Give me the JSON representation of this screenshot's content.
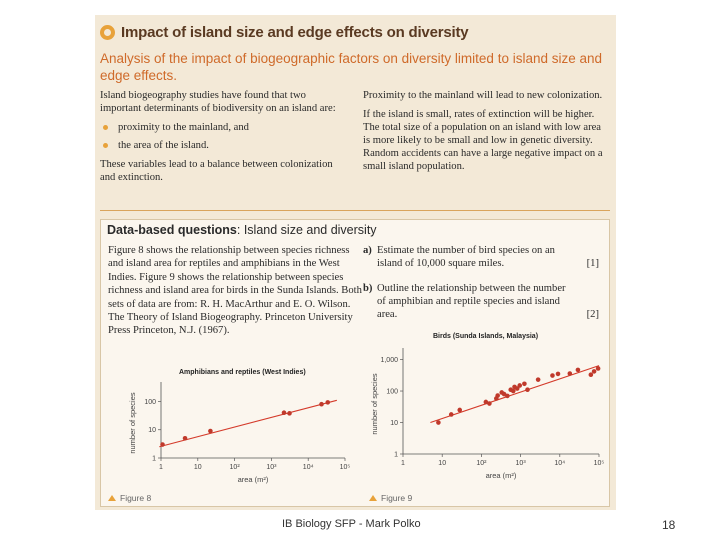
{
  "header": {
    "title": "Impact of island size and edge effects on diversity",
    "subtitle": "Analysis of the impact of biogeographic factors on diversity limited to island size and edge effects."
  },
  "intro": {
    "left_para": "Island biogeography studies have found that two important determinants of biodiversity on an island are:",
    "bullets": [
      "proximity to the mainland, and",
      "the area of the island."
    ],
    "left_after": "These variables lead to a balance between colonization and extinction.",
    "right_para1": "Proximity to the mainland will lead to new colonization.",
    "right_para2": "If the island is small, rates of extinction will be higher. The total size of a population on an island with low area is more likely to be small and low in genetic diversity. Random accidents can have a large negative impact on a small island population."
  },
  "dbq": {
    "title_bold": "Data-based questions",
    "title_rest": ": Island size and diversity",
    "body": "Figure 8 shows the relationship between species richness and island area for reptiles and amphibians in the West Indies. Figure 9 shows the relationship between species richness and island area for birds in the Sunda Islands. Both sets of data are from: R. H. MacArthur and E. O. Wilson. The Theory of Island Biogeography. Princeton University Press Princeton, N.J. (1967).",
    "questions": [
      {
        "letter": "a)",
        "text": "Estimate the number of bird species on an island of 10,000 square miles.",
        "marks": "[1]"
      },
      {
        "letter": "b)",
        "text": "Outline the relationship between the number of amphibian and reptile species and island area.",
        "marks": "[2]"
      }
    ]
  },
  "figures": [
    {
      "label": "Figure 8"
    },
    {
      "label": "Figure 9"
    }
  ],
  "chart_data": [
    {
      "type": "scatter",
      "title": "Amphibians and reptiles (West Indies)",
      "xlabel": "area (m²)",
      "ylabel": "number of species",
      "x_scale": "log",
      "y_scale": "log",
      "xlim": [
        1,
        100000
      ],
      "ylim": [
        1,
        300
      ],
      "xticks": [
        "1",
        "10",
        "10²",
        "10³",
        "10⁴",
        "10⁵"
      ],
      "yticks": [
        "1",
        "10",
        "100"
      ],
      "points": [
        [
          1.1,
          3
        ],
        [
          4.5,
          5
        ],
        [
          22,
          9
        ],
        [
          2200,
          40
        ],
        [
          3100,
          38
        ],
        [
          23000,
          80
        ],
        [
          34000,
          93
        ]
      ],
      "trend": [
        [
          0.9,
          2.5
        ],
        [
          60000,
          110
        ]
      ],
      "line_color": "#d43a2a",
      "marker_color": "#c0392b"
    },
    {
      "type": "scatter",
      "title": "Birds (Sunda Islands, Malaysia)",
      "xlabel": "area (m²)",
      "ylabel": "number of species",
      "x_scale": "log",
      "y_scale": "log",
      "xlim": [
        1,
        100000
      ],
      "ylim": [
        1,
        1500
      ],
      "xticks": [
        "1",
        "10",
        "10²",
        "10³",
        "10⁴",
        "10⁵"
      ],
      "yticks": [
        "1",
        "10",
        "100",
        "1,000"
      ],
      "points": [
        [
          8,
          10
        ],
        [
          17,
          18
        ],
        [
          28,
          25
        ],
        [
          130,
          45
        ],
        [
          160,
          40
        ],
        [
          240,
          58
        ],
        [
          260,
          72
        ],
        [
          330,
          90
        ],
        [
          380,
          80
        ],
        [
          460,
          70
        ],
        [
          560,
          110
        ],
        [
          650,
          100
        ],
        [
          700,
          135
        ],
        [
          820,
          120
        ],
        [
          950,
          150
        ],
        [
          1250,
          170
        ],
        [
          1500,
          110
        ],
        [
          2800,
          230
        ],
        [
          6500,
          310
        ],
        [
          9000,
          350
        ],
        [
          18000,
          360
        ],
        [
          29000,
          470
        ],
        [
          62000,
          330
        ],
        [
          75000,
          420
        ],
        [
          95000,
          520
        ]
      ],
      "trend": [
        [
          5,
          10
        ],
        [
          100000,
          640
        ]
      ],
      "line_color": "#d43a2a",
      "marker_color": "#c0392b"
    }
  ],
  "footer": {
    "center": "IB Biology SFP - Mark Polko",
    "page": "18"
  }
}
